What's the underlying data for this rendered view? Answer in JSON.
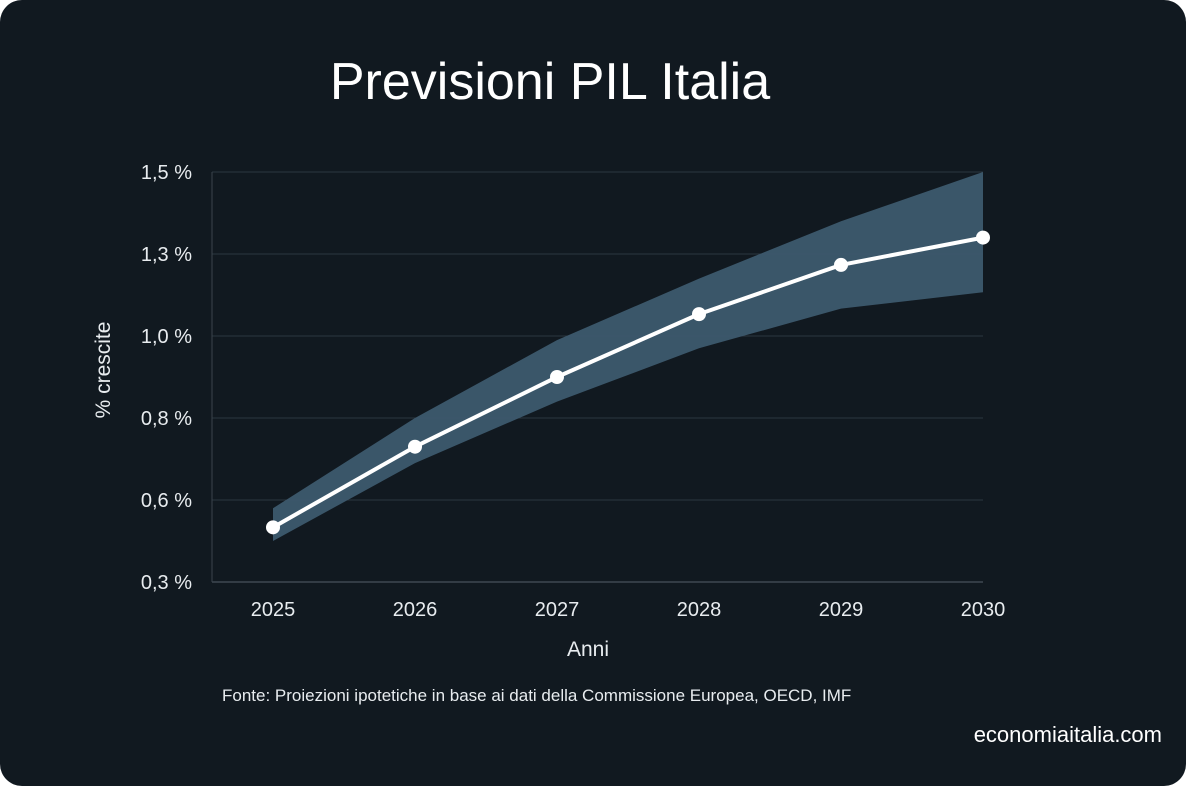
{
  "chart_data": {
    "type": "line",
    "title": "Previsioni PIL Italia",
    "xlabel": "Anni",
    "ylabel": "% crescite",
    "categories": [
      "2025",
      "2026",
      "2027",
      "2028",
      "2029",
      "2030"
    ],
    "y_ticks": [
      0.3,
      0.6,
      0.8,
      1.0,
      1.3,
      1.5
    ],
    "y_tick_labels": [
      "0,3 %",
      "0,6 %",
      "0,8 %",
      "1,0 %",
      "1,3 %",
      "1,5 %"
    ],
    "ylim": [
      0.3,
      1.5
    ],
    "series": [
      {
        "values": [
          0.5,
          0.73,
          0.9,
          1.08,
          1.26,
          1.34
        ]
      }
    ],
    "band": {
      "upper": [
        0.57,
        0.8,
        0.99,
        1.21,
        1.38,
        1.5
      ],
      "lower": [
        0.45,
        0.69,
        0.84,
        0.97,
        1.1,
        1.16
      ]
    },
    "grid": true,
    "colors": {
      "line": "#ffffff",
      "band": "#3d5a6e",
      "grid": "#2c363f",
      "background": "#111920"
    }
  },
  "footer": {
    "source": "Fonte: Proiezioni ipotetiche in base ai dati della Commissione Europea, OECD, IMF",
    "brand": "economiaitalia.com"
  }
}
